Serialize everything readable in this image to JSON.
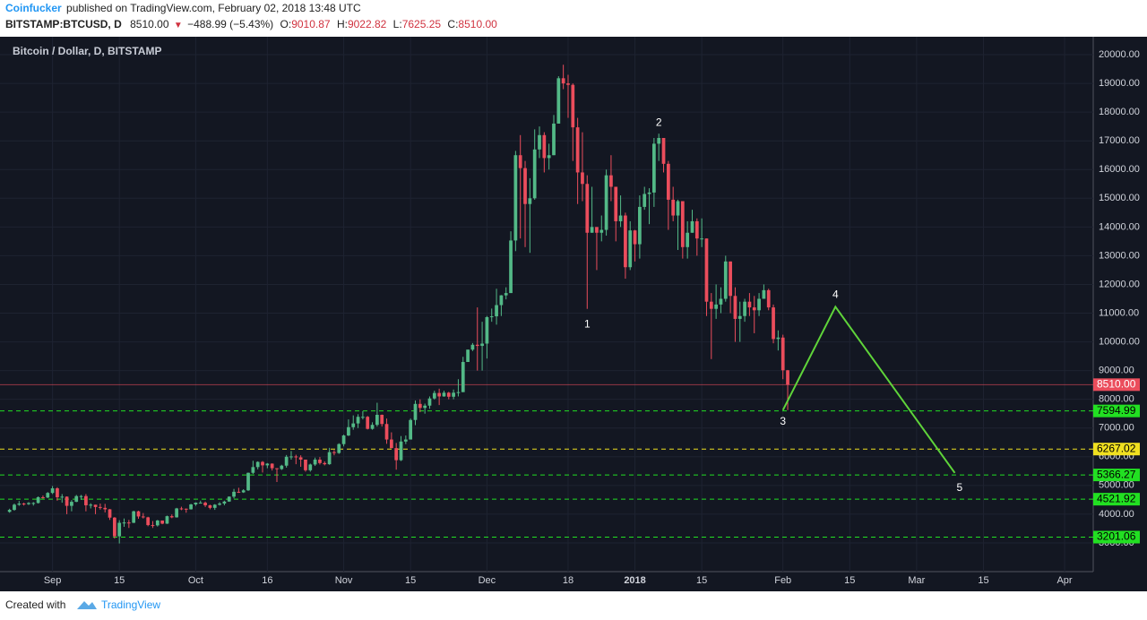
{
  "header": {
    "author": "Coinfucker",
    "published": "published on TradingView.com, February 02, 2018 13:48 UTC",
    "symbol": "BITSTAMP:BTCUSD, D",
    "last": "8510.00",
    "change": "−488.99 (−5.43%)",
    "ohlc": [
      {
        "label": "O:",
        "value": "9010.87"
      },
      {
        "label": "H:",
        "value": "9022.82"
      },
      {
        "label": "L:",
        "value": "7625.25"
      },
      {
        "label": "C:",
        "value": "8510.00"
      }
    ]
  },
  "footer": {
    "created": "Created with",
    "brand": "TradingView"
  },
  "chart_data": {
    "type": "candlestick",
    "title": "Bitcoin / Dollar, D, BITSTAMP",
    "grid": true,
    "up_color": "#53b987",
    "down_color": "#eb4d5c",
    "x": [
      "2017-08-23",
      "2017-08-24",
      "2017-08-25",
      "2017-08-26",
      "2017-08-27",
      "2017-08-28",
      "2017-08-29",
      "2017-08-30",
      "2017-08-31",
      "2017-09-01",
      "2017-09-02",
      "2017-09-03",
      "2017-09-04",
      "2017-09-05",
      "2017-09-06",
      "2017-09-07",
      "2017-09-08",
      "2017-09-09",
      "2017-09-10",
      "2017-09-11",
      "2017-09-12",
      "2017-09-13",
      "2017-09-14",
      "2017-09-15",
      "2017-09-16",
      "2017-09-17",
      "2017-09-18",
      "2017-09-19",
      "2017-09-20",
      "2017-09-21",
      "2017-09-22",
      "2017-09-23",
      "2017-09-24",
      "2017-09-25",
      "2017-09-26",
      "2017-09-27",
      "2017-09-28",
      "2017-09-29",
      "2017-09-30",
      "2017-10-01",
      "2017-10-02",
      "2017-10-03",
      "2017-10-04",
      "2017-10-05",
      "2017-10-06",
      "2017-10-07",
      "2017-10-08",
      "2017-10-09",
      "2017-10-10",
      "2017-10-11",
      "2017-10-12",
      "2017-10-13",
      "2017-10-14",
      "2017-10-15",
      "2017-10-16",
      "2017-10-17",
      "2017-10-18",
      "2017-10-19",
      "2017-10-20",
      "2017-10-21",
      "2017-10-22",
      "2017-10-23",
      "2017-10-24",
      "2017-10-25",
      "2017-10-26",
      "2017-10-27",
      "2017-10-28",
      "2017-10-29",
      "2017-10-30",
      "2017-10-31",
      "2017-11-01",
      "2017-11-02",
      "2017-11-03",
      "2017-11-04",
      "2017-11-05",
      "2017-11-06",
      "2017-11-07",
      "2017-11-08",
      "2017-11-09",
      "2017-11-10",
      "2017-11-11",
      "2017-11-12",
      "2017-11-13",
      "2017-11-14",
      "2017-11-15",
      "2017-11-16",
      "2017-11-17",
      "2017-11-18",
      "2017-11-19",
      "2017-11-20",
      "2017-11-21",
      "2017-11-22",
      "2017-11-23",
      "2017-11-24",
      "2017-11-25",
      "2017-11-26",
      "2017-11-27",
      "2017-11-28",
      "2017-11-29",
      "2017-11-30",
      "2017-12-01",
      "2017-12-02",
      "2017-12-03",
      "2017-12-04",
      "2017-12-05",
      "2017-12-06",
      "2017-12-07",
      "2017-12-08",
      "2017-12-09",
      "2017-12-10",
      "2017-12-11",
      "2017-12-12",
      "2017-12-13",
      "2017-12-14",
      "2017-12-15",
      "2017-12-16",
      "2017-12-17",
      "2017-12-18",
      "2017-12-19",
      "2017-12-20",
      "2017-12-21",
      "2017-12-22",
      "2017-12-23",
      "2017-12-24",
      "2017-12-25",
      "2017-12-26",
      "2017-12-27",
      "2017-12-28",
      "2017-12-29",
      "2017-12-30",
      "2017-12-31",
      "2018-01-01",
      "2018-01-02",
      "2018-01-03",
      "2018-01-04",
      "2018-01-05",
      "2018-01-06",
      "2018-01-07",
      "2018-01-08",
      "2018-01-09",
      "2018-01-10",
      "2018-01-11",
      "2018-01-12",
      "2018-01-13",
      "2018-01-14",
      "2018-01-15",
      "2018-01-16",
      "2018-01-17",
      "2018-01-18",
      "2018-01-19",
      "2018-01-20",
      "2018-01-21",
      "2018-01-22",
      "2018-01-23",
      "2018-01-24",
      "2018-01-25",
      "2018-01-26",
      "2018-01-27",
      "2018-01-28",
      "2018-01-29",
      "2018-01-30",
      "2018-01-31",
      "2018-02-01",
      "2018-02-02"
    ],
    "open": [
      4080,
      4150,
      4330,
      4370,
      4350,
      4390,
      4390,
      4590,
      4580,
      4740,
      4900,
      4590,
      4610,
      4290,
      4430,
      4630,
      4630,
      4310,
      4330,
      4250,
      4220,
      4170,
      3880,
      3230,
      3700,
      3710,
      3700,
      4100,
      3920,
      3890,
      3620,
      3610,
      3780,
      3670,
      3930,
      3890,
      4200,
      4190,
      4170,
      4340,
      4400,
      4400,
      4310,
      4220,
      4330,
      4370,
      4440,
      4610,
      4780,
      4760,
      4830,
      5440,
      5640,
      5820,
      5700,
      5760,
      5600,
      5570,
      5690,
      6000,
      6010,
      5980,
      5900,
      5530,
      5730,
      5900,
      5780,
      5740,
      6160,
      6130,
      6440,
      6740,
      7030,
      7160,
      7390,
      7390,
      6970,
      7110,
      7460,
      7140,
      6600,
      6300,
      5880,
      6530,
      6600,
      7280,
      7840,
      7700,
      7780,
      8030,
      8220,
      8100,
      8230,
      8090,
      8230,
      8250,
      9300,
      9730,
      9900,
      9860,
      9940,
      10860,
      10890,
      11280,
      11620,
      11700,
      13530,
      16500,
      16050,
      14800,
      15000,
      16700,
      17200,
      16400,
      16500,
      17600,
      19180,
      19000,
      18950,
      17470,
      15900,
      15500,
      13800,
      14000,
      13800,
      13900,
      15800,
      15400,
      14200,
      14400,
      12600,
      13880,
      13400,
      14700,
      15150,
      15200,
      16900,
      17100,
      16200,
      14950,
      14400,
      14900,
      13300,
      13800,
      14200,
      13600,
      13600,
      11400,
      11150,
      11300,
      11500,
      12800,
      11600,
      10800,
      10900,
      11400,
      11200,
      11100,
      11500,
      11800,
      11200,
      10100,
      10150,
      9010.87
    ],
    "high": [
      4190,
      4370,
      4460,
      4400,
      4420,
      4420,
      4620,
      4650,
      4770,
      4980,
      4940,
      4700,
      4620,
      4490,
      4670,
      4670,
      4700,
      4380,
      4330,
      4370,
      4360,
      4180,
      3900,
      3790,
      3850,
      3800,
      4120,
      4120,
      4040,
      3910,
      3760,
      3800,
      3780,
      3950,
      3990,
      4220,
      4260,
      4200,
      4360,
      4410,
      4470,
      4440,
      4330,
      4350,
      4420,
      4470,
      4620,
      4880,
      4920,
      4870,
      5450,
      5860,
      5840,
      5850,
      5780,
      5770,
      5600,
      5720,
      6060,
      6200,
      6070,
      6050,
      5900,
      5760,
      5970,
      5990,
      5840,
      6310,
      6230,
      6470,
      6770,
      7300,
      7440,
      7480,
      7590,
      7420,
      7200,
      7880,
      7470,
      7330,
      6850,
      6480,
      6720,
      6740,
      7330,
      7960,
      8000,
      7850,
      8100,
      8300,
      8370,
      8300,
      8260,
      8340,
      8700,
      9480,
      9730,
      9960,
      11200,
      10700,
      10900,
      11160,
      11850,
      11630,
      11900,
      13850,
      16650,
      17200,
      16300,
      15700,
      17400,
      17500,
      17300,
      16900,
      17900,
      19250,
      19650,
      19300,
      19000,
      17800,
      17300,
      15800,
      15400,
      14000,
      14400,
      16000,
      16500,
      15400,
      15100,
      14500,
      14200,
      13900,
      15100,
      15400,
      15350,
      17100,
      17250,
      17100,
      16300,
      15400,
      14950,
      14900,
      14200,
      14600,
      14300,
      14300,
      13600,
      11700,
      12000,
      11900,
      13000,
      12800,
      11900,
      11400,
      11500,
      11700,
      11600,
      11700,
      12000,
      11850,
      11300,
      10400,
      10250,
      9022.82
    ],
    "low": [
      4050,
      4120,
      4290,
      4300,
      4320,
      4300,
      4370,
      4540,
      4560,
      4700,
      4470,
      4400,
      4000,
      4100,
      4420,
      4500,
      4100,
      4200,
      4000,
      4160,
      4060,
      3800,
      3150,
      2980,
      3560,
      3520,
      3690,
      3840,
      3850,
      3580,
      3520,
      3570,
      3650,
      3660,
      3860,
      3880,
      4140,
      4050,
      4160,
      4290,
      4370,
      4250,
      4170,
      4150,
      4300,
      4310,
      4430,
      4550,
      4740,
      4740,
      4810,
      5400,
      5560,
      5450,
      5600,
      5520,
      5120,
      5540,
      5620,
      5900,
      5740,
      5650,
      5480,
      5480,
      5680,
      5730,
      5700,
      5720,
      6050,
      6100,
      6360,
      6720,
      6940,
      7000,
      7300,
      6950,
      6940,
      7050,
      7050,
      6450,
      6300,
      5550,
      5850,
      6440,
      6600,
      7100,
      7550,
      7500,
      7670,
      7990,
      7800,
      8090,
      8000,
      8000,
      8100,
      8250,
      9300,
      9680,
      9000,
      9000,
      9420,
      10700,
      10600,
      10900,
      11480,
      11700,
      13160,
      13600,
      13300,
      13100,
      14950,
      16400,
      15900,
      16000,
      16500,
      17600,
      18800,
      17800,
      16300,
      14800,
      14900,
      11150,
      13800,
      12500,
      13500,
      13700,
      14900,
      13500,
      14000,
      12200,
      12500,
      12800,
      12900,
      14600,
      14100,
      14700,
      16300,
      15900,
      13900,
      14200,
      13200,
      12900,
      12900,
      13800,
      13000,
      13300,
      10900,
      9400,
      10800,
      11000,
      11400,
      11000,
      10000,
      10000,
      10700,
      10900,
      10300,
      10900,
      11500,
      11100,
      9950,
      9700,
      8700,
      7625.25
    ],
    "close": [
      4150,
      4330,
      4370,
      4350,
      4390,
      4390,
      4590,
      4580,
      4740,
      4900,
      4590,
      4610,
      4290,
      4430,
      4630,
      4630,
      4310,
      4330,
      4250,
      4220,
      4170,
      3880,
      3230,
      3700,
      3710,
      3700,
      4100,
      3920,
      3890,
      3620,
      3610,
      3780,
      3670,
      3930,
      3890,
      4200,
      4190,
      4170,
      4340,
      4400,
      4400,
      4310,
      4220,
      4330,
      4370,
      4440,
      4610,
      4780,
      4760,
      4830,
      5440,
      5640,
      5820,
      5700,
      5760,
      5600,
      5570,
      5690,
      6000,
      6010,
      5980,
      5900,
      5530,
      5730,
      5900,
      5780,
      5740,
      6160,
      6130,
      6440,
      6740,
      7030,
      7160,
      7390,
      7390,
      6970,
      7110,
      7460,
      7140,
      6600,
      6300,
      5880,
      6530,
      6600,
      7280,
      7840,
      7700,
      7780,
      8030,
      8220,
      8100,
      8230,
      8090,
      8230,
      8250,
      9300,
      9730,
      9900,
      9860,
      9940,
      10860,
      10890,
      11280,
      11620,
      11700,
      13530,
      16500,
      16050,
      14800,
      15000,
      16700,
      17200,
      16400,
      16500,
      17600,
      19180,
      19000,
      18950,
      17470,
      15900,
      15500,
      13800,
      14000,
      13800,
      13900,
      15800,
      15400,
      14200,
      14400,
      12600,
      13880,
      13400,
      14700,
      15150,
      15200,
      16900,
      17100,
      16200,
      14950,
      14400,
      14900,
      13300,
      13800,
      14200,
      13600,
      13600,
      11400,
      11150,
      11300,
      11500,
      12800,
      11600,
      10800,
      10900,
      11400,
      11200,
      11100,
      11500,
      11800,
      11200,
      10100,
      10150,
      9010.87,
      8510
    ],
    "xlim": [
      "2017-08-21",
      "2018-04-07"
    ],
    "xticks": [
      {
        "value": "2017-09-01",
        "label": "Sep"
      },
      {
        "value": "2017-09-15",
        "label": "15"
      },
      {
        "value": "2017-10-01",
        "label": "Oct"
      },
      {
        "value": "2017-10-16",
        "label": "16"
      },
      {
        "value": "2017-11-01",
        "label": "Nov"
      },
      {
        "value": "2017-11-15",
        "label": "15"
      },
      {
        "value": "2017-12-01",
        "label": "Dec"
      },
      {
        "value": "2017-12-18",
        "label": "18"
      },
      {
        "value": "2018-01-01",
        "label": "2018"
      },
      {
        "value": "2018-01-15",
        "label": "15"
      },
      {
        "value": "2018-02-01",
        "label": "Feb"
      },
      {
        "value": "2018-02-15",
        "label": "15"
      },
      {
        "value": "2018-03-01",
        "label": "Mar"
      },
      {
        "value": "2018-03-15",
        "label": "15"
      },
      {
        "value": "2018-04-01",
        "label": "Apr"
      }
    ],
    "ylim": [
      2000,
      20625
    ],
    "yticks": [
      {
        "value": 3000,
        "label": "3000.00"
      },
      {
        "value": 4000,
        "label": "4000.00"
      },
      {
        "value": 5000,
        "label": "5000.00"
      },
      {
        "value": 6000,
        "label": "6000.00"
      },
      {
        "value": 7000,
        "label": "7000.00"
      },
      {
        "value": 8000,
        "label": "8000.00"
      },
      {
        "value": 9000,
        "label": "9000.00"
      },
      {
        "value": 10000,
        "label": "10000.00"
      },
      {
        "value": 11000,
        "label": "11000.00"
      },
      {
        "value": 12000,
        "label": "12000.00"
      },
      {
        "value": 13000,
        "label": "13000.00"
      },
      {
        "value": 14000,
        "label": "14000.00"
      },
      {
        "value": 15000,
        "label": "15000.00"
      },
      {
        "value": 16000,
        "label": "16000.00"
      },
      {
        "value": 17000,
        "label": "17000.00"
      },
      {
        "value": 18000,
        "label": "18000.00"
      },
      {
        "value": 19000,
        "label": "19000.00"
      },
      {
        "value": 20000,
        "label": "20000.00"
      }
    ],
    "last_price": {
      "value": 8510,
      "label": "8510.00",
      "color": "#eb4d5c"
    },
    "levels": [
      {
        "value": 7594.99,
        "color": "#22e022"
      },
      {
        "value": 6267.02,
        "color": "#f0e020"
      },
      {
        "value": 5366.27,
        "color": "#22e022"
      },
      {
        "value": 4521.92,
        "color": "#22e022"
      },
      {
        "value": 3201.06,
        "color": "#22e022"
      }
    ],
    "projection": {
      "x": [
        "2018-02-01",
        "2018-02-12",
        "2018-03-09"
      ],
      "y": [
        7625,
        11220,
        5437
      ],
      "color": "#5fd43a"
    },
    "annotations": [
      {
        "text": "1",
        "x": "2017-12-22",
        "y": 10594
      },
      {
        "text": "2",
        "x": "2018-01-06",
        "y": 17625
      },
      {
        "text": "3",
        "x": "2018-02-01",
        "y": 7219
      },
      {
        "text": "4",
        "x": "2018-02-12",
        "y": 11625
      },
      {
        "text": "5",
        "x": "2018-03-10",
        "y": 4906
      }
    ]
  }
}
